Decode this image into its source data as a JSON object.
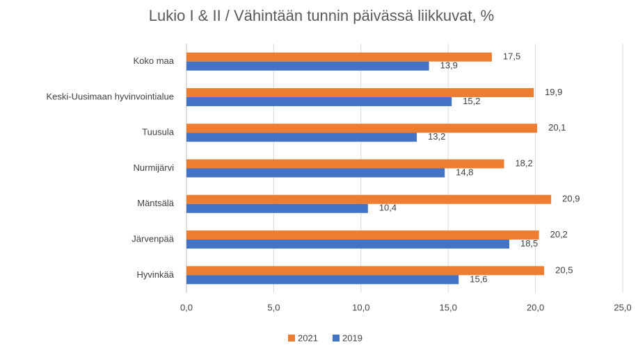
{
  "chart_data": {
    "type": "hbar",
    "title": "Lukio I & II / Vähintään tunnin päivässä liikkuvat, %",
    "categories": [
      "Koko maa",
      "Keski-Uusimaan hyvinvointialue",
      "Tuusula",
      "Nurmijärvi",
      "Mäntsälä",
      "Järvenpää",
      "Hyvinkää"
    ],
    "series": [
      {
        "name": "2021",
        "color": "#ed7d31",
        "values": [
          17.5,
          19.9,
          20.1,
          18.2,
          20.9,
          20.2,
          20.5
        ],
        "value_labels": [
          "17,5",
          "19,9",
          "20,1",
          "18,2",
          "20,9",
          "20,2",
          "20,5"
        ]
      },
      {
        "name": "2019",
        "color": "#4472c4",
        "values": [
          13.9,
          15.2,
          13.2,
          14.8,
          10.4,
          18.5,
          15.6
        ],
        "value_labels": [
          "13,9",
          "15,2",
          "13,2",
          "14,8",
          "10,4",
          "18,5",
          "15,6"
        ]
      }
    ],
    "xlim": [
      0,
      25
    ],
    "xticks": [
      {
        "value": 0,
        "label": "0,0"
      },
      {
        "value": 5,
        "label": "5,0"
      },
      {
        "value": 10,
        "label": "10,0"
      },
      {
        "value": 15,
        "label": "15,0"
      },
      {
        "value": 20,
        "label": "20,0"
      },
      {
        "value": 25,
        "label": "25,0"
      }
    ],
    "grid": true,
    "legend": "bottom"
  }
}
